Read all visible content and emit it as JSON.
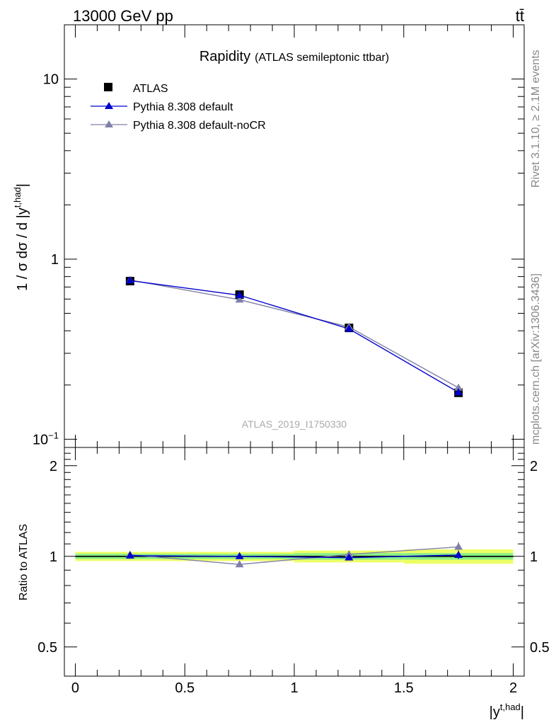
{
  "header": {
    "energy_label": "13000 GeV pp",
    "process_label": "tt̄"
  },
  "title": {
    "main": "Rapidity",
    "sub": "(ATLAS semileptonic ttbar)"
  },
  "side_labels": {
    "rivet": "Rivet 3.1.10, ≥ 2.1M events",
    "mcplots": "mcplots.cern.ch [arXiv:1306.3436]"
  },
  "watermark": "ATLAS_2019_I1750330",
  "axes": {
    "ylabel_main": "1 / σ dσ / d |y",
    "ylabel_main_sup": "t,had",
    "ylabel_main_close": "|",
    "ylabel_ratio": "Ratio to ATLAS",
    "xlabel": "|y",
    "xlabel_sup": "t,had",
    "xlabel_close": "|",
    "main_ticks": [
      {
        "value": 10,
        "label": "10"
      },
      {
        "value": 1,
        "label": "1"
      },
      {
        "value": 0.1,
        "label": "10",
        "sup": "−1"
      }
    ],
    "ratio_ticks": [
      {
        "value": 2,
        "label": "2"
      },
      {
        "value": 1,
        "label": "1"
      },
      {
        "value": 0.5,
        "label": "0.5"
      }
    ],
    "x_ticks": [
      {
        "value": 0,
        "label": "0"
      },
      {
        "value": 0.5,
        "label": "0.5"
      },
      {
        "value": 1,
        "label": "1"
      },
      {
        "value": 1.5,
        "label": "1.5"
      },
      {
        "value": 2,
        "label": "2"
      }
    ]
  },
  "legend": [
    {
      "key": "atlas",
      "label": "ATLAS"
    },
    {
      "key": "default",
      "label": "Pythia 8.308 default"
    },
    {
      "key": "nocr",
      "label": "Pythia 8.308 default-noCR"
    }
  ],
  "colors": {
    "data": "#000000",
    "default": "#0000cc",
    "nocr": "#8080a8",
    "band_inner": "#88ee88",
    "band_outer": "#eeff66"
  },
  "chart_data": {
    "type": "line",
    "xlim": [
      -0.05,
      2.05
    ],
    "ylim_main": [
      0.09,
      20
    ],
    "ylog_main": true,
    "ylim_ratio": [
      0.4,
      2.3
    ],
    "ylog_ratio": true,
    "bins": [
      [
        0,
        0.5
      ],
      [
        0.5,
        1.0
      ],
      [
        1.0,
        1.5
      ],
      [
        1.5,
        2.0
      ]
    ],
    "x": [
      0.25,
      0.75,
      1.25,
      1.75
    ],
    "series": [
      {
        "key": "atlas",
        "name": "ATLAS",
        "values": [
          0.755,
          0.635,
          0.415,
          0.181
        ],
        "marker": "square"
      },
      {
        "key": "default",
        "name": "Pythia 8.308 default",
        "values": [
          0.76,
          0.63,
          0.41,
          0.182
        ],
        "errors": [
          0.004,
          0.004,
          0.004,
          0.003
        ],
        "marker": "triangle"
      },
      {
        "key": "nocr",
        "name": "Pythia 8.308 default-noCR",
        "values": [
          0.765,
          0.595,
          0.42,
          0.193
        ],
        "errors": [
          0.005,
          0.005,
          0.005,
          0.006
        ],
        "marker": "triangle"
      }
    ],
    "ratio": {
      "band_inner": [
        [
          0.98,
          1.02
        ],
        [
          0.98,
          1.02
        ],
        [
          0.975,
          1.025
        ],
        [
          0.975,
          1.025
        ]
      ],
      "band_outer": [
        [
          0.965,
          1.035
        ],
        [
          0.965,
          1.035
        ],
        [
          0.955,
          1.045
        ],
        [
          0.945,
          1.055
        ]
      ],
      "series": [
        {
          "key": "default",
          "values": [
            1.005,
            1.0,
            0.99,
            1.01
          ],
          "errors": [
            0.01,
            0.01,
            0.015,
            0.03
          ]
        },
        {
          "key": "nocr",
          "values": [
            1.013,
            0.94,
            1.015,
            1.075
          ],
          "errors": [
            0.012,
            0.012,
            0.02,
            0.04
          ]
        }
      ]
    },
    "legend_position": "top-left"
  }
}
